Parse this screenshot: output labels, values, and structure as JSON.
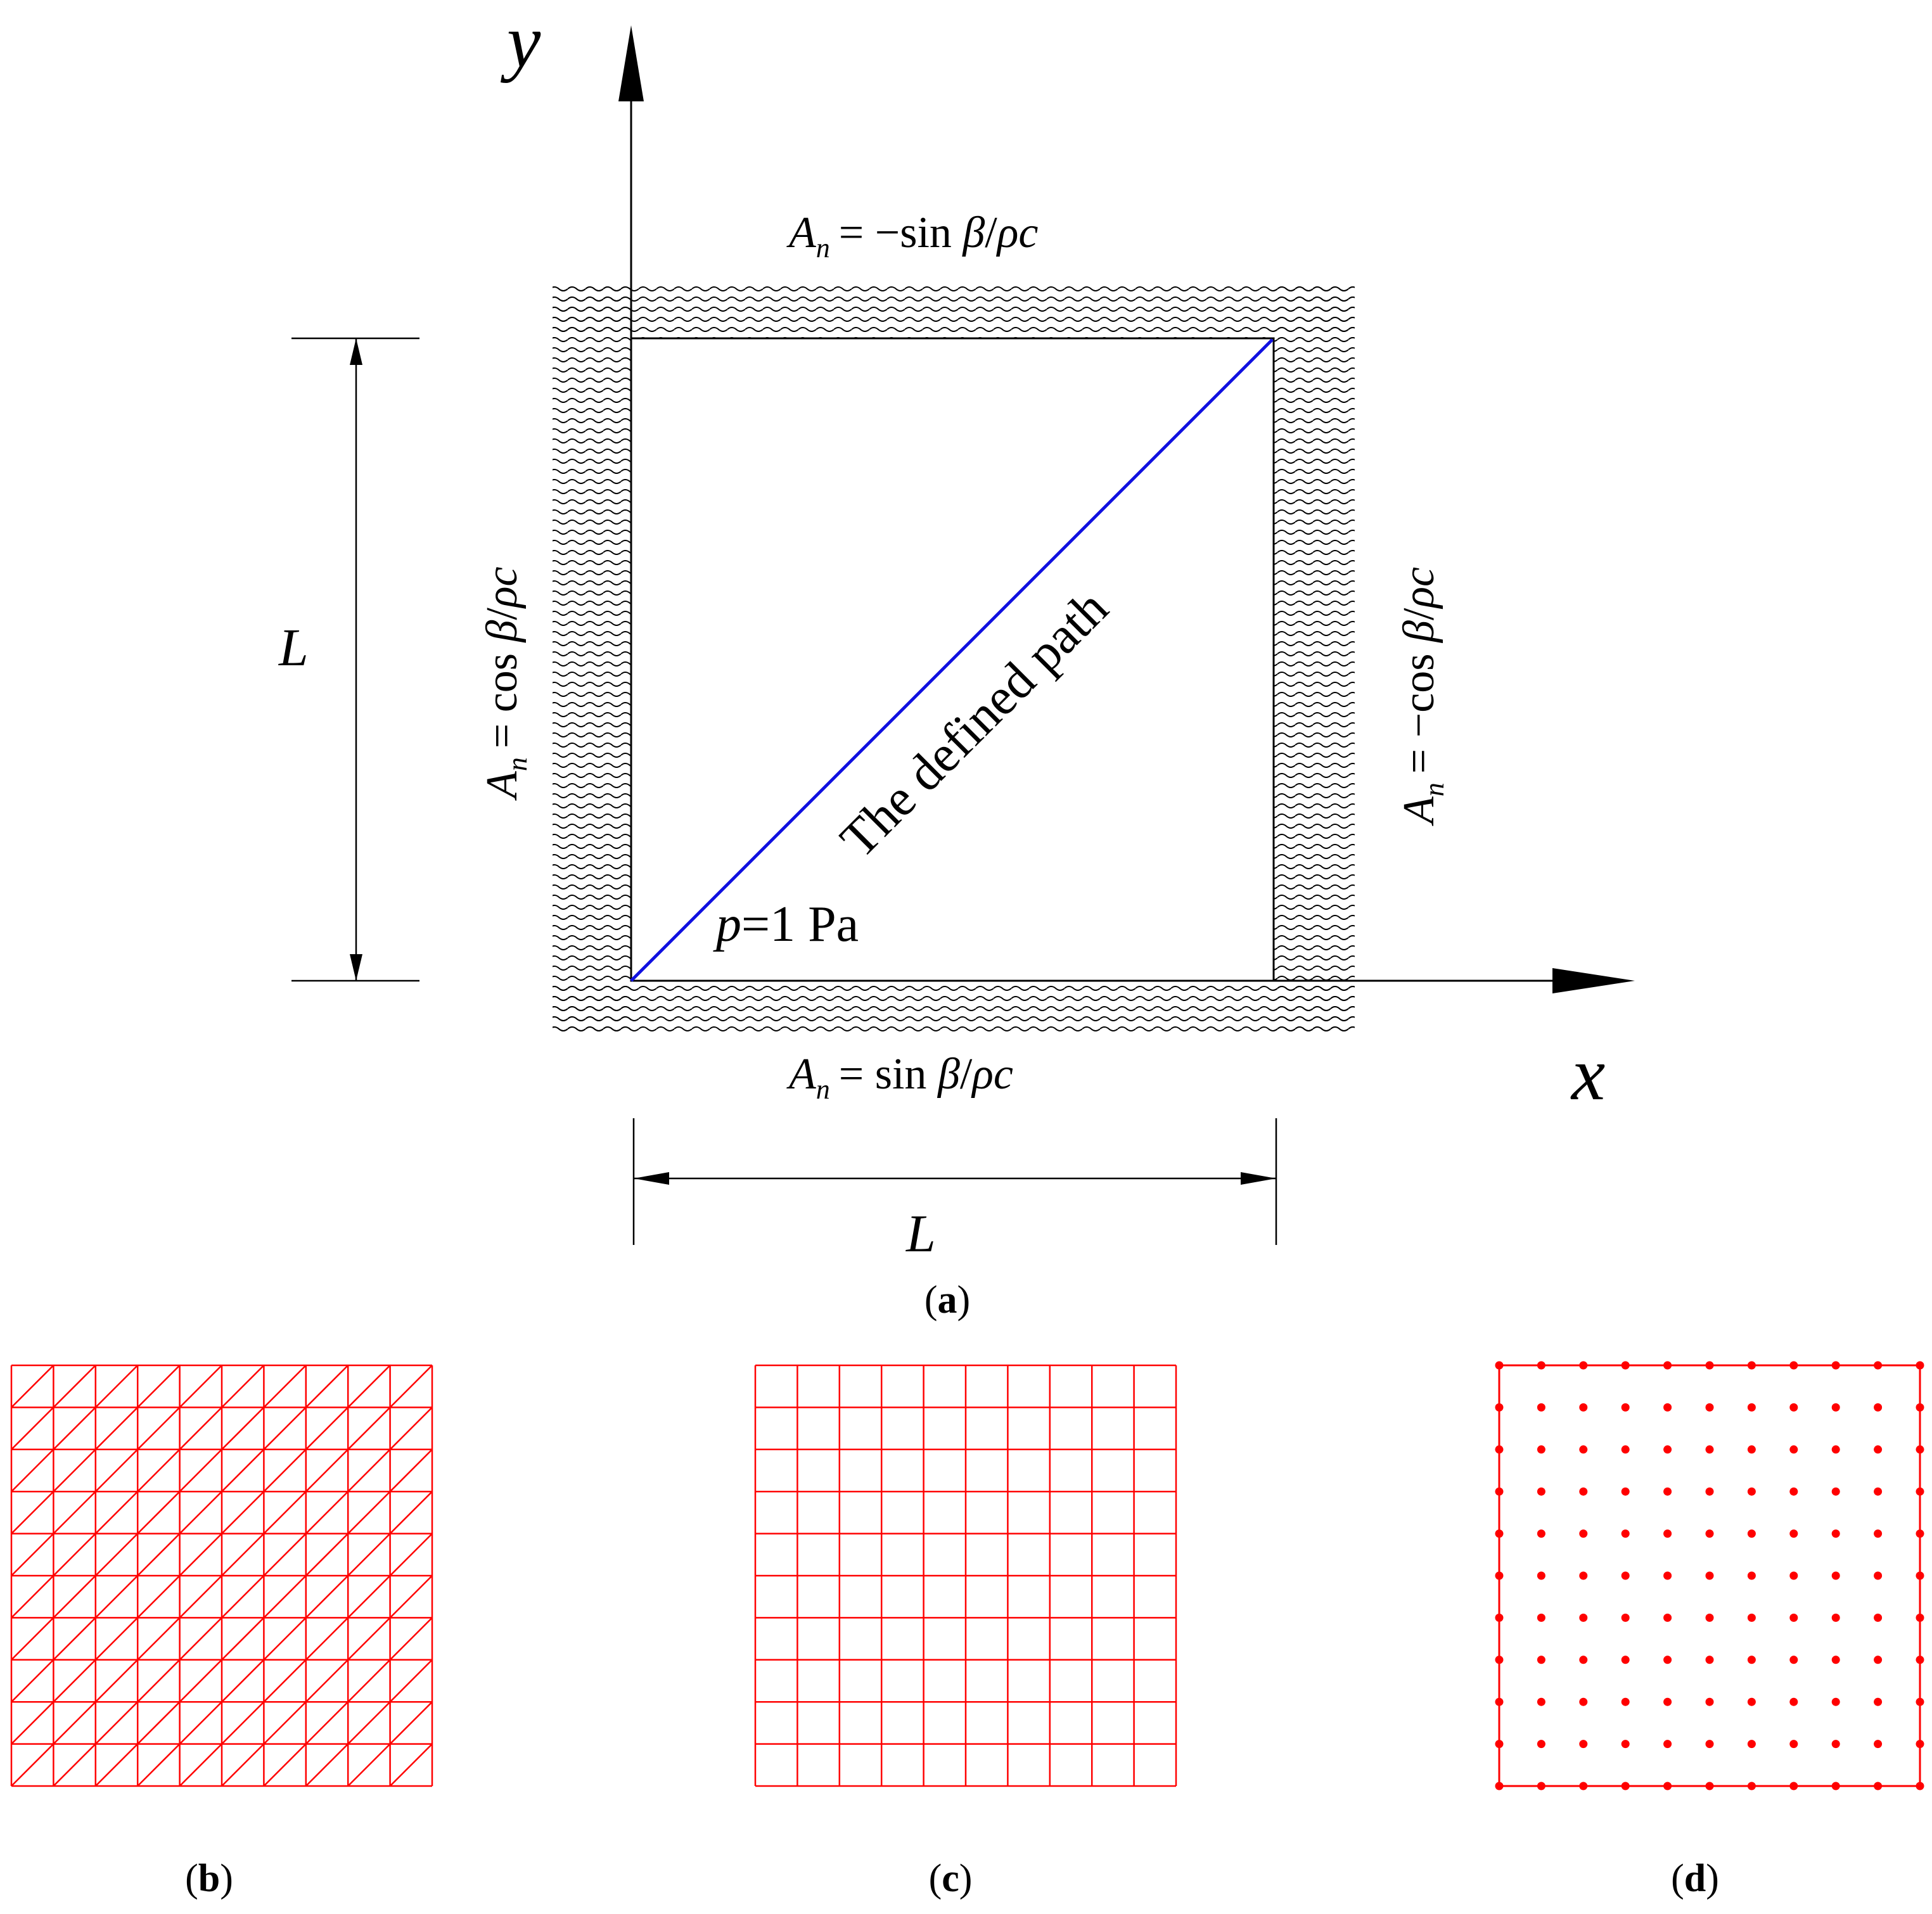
{
  "figure": {
    "axes": {
      "x_label": "x",
      "y_label": "y"
    },
    "boundaries": {
      "top": {
        "lhs": "A",
        "sub": "n",
        "rhs_prefix": "= −sin ",
        "beta": "β",
        "slash": "/",
        "rho_c": "ρc"
      },
      "bottom": {
        "lhs": "A",
        "sub": "n",
        "rhs_prefix": "= sin ",
        "beta": "β",
        "slash": "/",
        "rho_c": "ρc"
      },
      "left": {
        "lhs": "A",
        "sub": "n",
        "rhs_prefix": "= cos ",
        "beta": "β",
        "slash": "/",
        "rho_c": "ρc"
      },
      "right": {
        "lhs": "A",
        "sub": "n",
        "rhs_prefix": "= −cos ",
        "beta": "β",
        "slash": "/",
        "rho_c": "ρc"
      }
    },
    "path_label": "The defined path",
    "pressure": {
      "symbol": "p",
      "value": "=1 Pa"
    },
    "dimension_vertical": "L",
    "dimension_horizontal": "L",
    "colors": {
      "line": "#000000",
      "path": "#1010e0",
      "mesh": "#ff0000"
    }
  },
  "panels": {
    "a": {
      "open": "(",
      "letter": "a",
      "close": ")"
    },
    "b": {
      "open": "(",
      "letter": "b",
      "close": ")",
      "mesh": "triangular",
      "divisions": 10
    },
    "c": {
      "open": "(",
      "letter": "c",
      "close": ")",
      "mesh": "quadrilateral",
      "divisions": 10
    },
    "d": {
      "open": "(",
      "letter": "d",
      "close": ")",
      "mesh": "nodes",
      "divisions": 10
    }
  }
}
